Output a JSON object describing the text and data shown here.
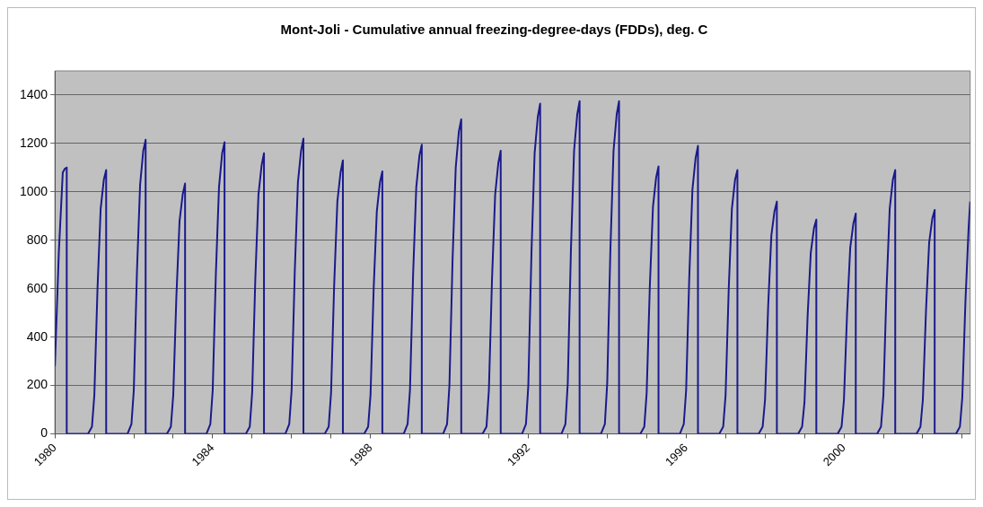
{
  "chart_data": {
    "type": "line",
    "title": "Mont-Joli - Cumulative annual freezing-degree-days (FDDs), deg. C",
    "color": "#1a1a8c",
    "grid": "y",
    "marker": "none",
    "xlim": [
      1980,
      2003.2
    ],
    "ylim": [
      0,
      1500
    ],
    "yticks": [
      0,
      200,
      400,
      600,
      800,
      1000,
      1200,
      1400
    ],
    "xticks": [
      1980,
      {
        "value": 1981,
        "label": null
      },
      {
        "value": 1982,
        "label": null
      },
      {
        "value": 1983,
        "label": null
      },
      1984,
      {
        "value": 1985,
        "label": null
      },
      {
        "value": 1986,
        "label": null
      },
      {
        "value": 1987,
        "label": null
      },
      1988,
      {
        "value": 1989,
        "label": null
      },
      {
        "value": 1990,
        "label": null
      },
      {
        "value": 1991,
        "label": null
      },
      1992,
      {
        "value": 1993,
        "label": null
      },
      {
        "value": 1994,
        "label": null
      },
      {
        "value": 1995,
        "label": null
      },
      1996,
      {
        "value": 1997,
        "label": null
      },
      {
        "value": 1998,
        "label": null
      },
      {
        "value": 1999,
        "label": null
      },
      2000,
      {
        "value": 2001,
        "label": null
      },
      {
        "value": 2002,
        "label": null
      },
      {
        "value": 2003,
        "label": null
      }
    ],
    "x": [
      1980,
      1980.1,
      1980.2,
      1980.25,
      1980.3,
      1980.3,
      1980.84,
      1980.94,
      1981,
      1981.08,
      1981.16,
      1981.24,
      1981.3,
      1981.3,
      1981.84,
      1981.94,
      1982,
      1982.08,
      1982.16,
      1982.24,
      1982.3,
      1982.3,
      1982.84,
      1982.94,
      1983,
      1983.08,
      1983.16,
      1983.24,
      1983.3,
      1983.3,
      1983.84,
      1983.94,
      1984,
      1984.08,
      1984.16,
      1984.24,
      1984.3,
      1984.3,
      1984.84,
      1984.94,
      1985,
      1985.08,
      1985.16,
      1985.24,
      1985.3,
      1985.3,
      1985.84,
      1985.94,
      1986,
      1986.08,
      1986.16,
      1986.24,
      1986.3,
      1986.3,
      1986.84,
      1986.94,
      1987,
      1987.08,
      1987.16,
      1987.24,
      1987.3,
      1987.3,
      1987.84,
      1987.94,
      1988,
      1988.08,
      1988.16,
      1988.24,
      1988.3,
      1988.3,
      1988.84,
      1988.94,
      1989,
      1989.08,
      1989.16,
      1989.24,
      1989.3,
      1989.3,
      1989.84,
      1989.94,
      1990,
      1990.08,
      1990.16,
      1990.24,
      1990.3,
      1990.3,
      1990.84,
      1990.94,
      1991,
      1991.08,
      1991.16,
      1991.24,
      1991.3,
      1991.3,
      1991.84,
      1991.94,
      1992,
      1992.08,
      1992.16,
      1992.24,
      1992.3,
      1992.3,
      1992.84,
      1992.94,
      1993,
      1993.08,
      1993.16,
      1993.24,
      1993.3,
      1993.3,
      1993.84,
      1993.94,
      1994,
      1994.08,
      1994.16,
      1994.24,
      1994.3,
      1994.3,
      1994.84,
      1994.94,
      1995,
      1995.08,
      1995.16,
      1995.24,
      1995.3,
      1995.3,
      1995.84,
      1995.94,
      1996,
      1996.08,
      1996.16,
      1996.24,
      1996.3,
      1996.3,
      1996.84,
      1996.94,
      1997,
      1997.08,
      1997.16,
      1997.24,
      1997.3,
      1997.3,
      1997.84,
      1997.94,
      1998,
      1998.08,
      1998.16,
      1998.24,
      1998.3,
      1998.3,
      1998.84,
      1998.94,
      1999,
      1999.08,
      1999.16,
      1999.24,
      1999.3,
      1999.3,
      1999.84,
      1999.94,
      2000,
      2000.08,
      2000.16,
      2000.24,
      2000.3,
      2000.3,
      2000.84,
      2000.94,
      2001,
      2001.08,
      2001.16,
      2001.24,
      2001.3,
      2001.3,
      2001.84,
      2001.94,
      2002,
      2002.08,
      2002.16,
      2002.24,
      2002.3,
      2002.3,
      2002.84,
      2002.94,
      2003,
      2003.08,
      2003.16,
      2003.2
    ],
    "values": [
      280,
      750,
      1080,
      1095,
      1100,
      0,
      0,
      30,
      160,
      600,
      930,
      1050,
      1090,
      0,
      0,
      40,
      180,
      670,
      1030,
      1170,
      1215,
      0,
      0,
      30,
      160,
      570,
      880,
      990,
      1035,
      0,
      0,
      40,
      180,
      660,
      1020,
      1160,
      1205,
      0,
      0,
      30,
      170,
      640,
      990,
      1110,
      1160,
      0,
      0,
      40,
      180,
      670,
      1040,
      1170,
      1220,
      0,
      0,
      30,
      170,
      620,
      960,
      1080,
      1130,
      0,
      0,
      30,
      160,
      600,
      920,
      1040,
      1085,
      0,
      0,
      40,
      180,
      660,
      1020,
      1150,
      1195,
      0,
      0,
      40,
      200,
      720,
      1100,
      1250,
      1300,
      0,
      0,
      30,
      180,
      640,
      990,
      1120,
      1170,
      0,
      0,
      40,
      200,
      750,
      1160,
      1310,
      1365,
      0,
      0,
      40,
      210,
      760,
      1170,
      1320,
      1375,
      0,
      0,
      40,
      210,
      760,
      1170,
      1320,
      1375,
      0,
      0,
      30,
      170,
      610,
      940,
      1060,
      1105,
      0,
      0,
      40,
      180,
      650,
      1010,
      1140,
      1190,
      0,
      0,
      30,
      160,
      600,
      930,
      1050,
      1090,
      0,
      0,
      30,
      140,
      530,
      820,
      920,
      960,
      0,
      0,
      30,
      130,
      490,
      750,
      850,
      885,
      0,
      0,
      30,
      140,
      500,
      770,
      870,
      910,
      0,
      0,
      30,
      160,
      600,
      930,
      1050,
      1090,
      0,
      0,
      30,
      140,
      510,
      790,
      890,
      925,
      0,
      0,
      30,
      150,
      550,
      850,
      960
    ]
  }
}
